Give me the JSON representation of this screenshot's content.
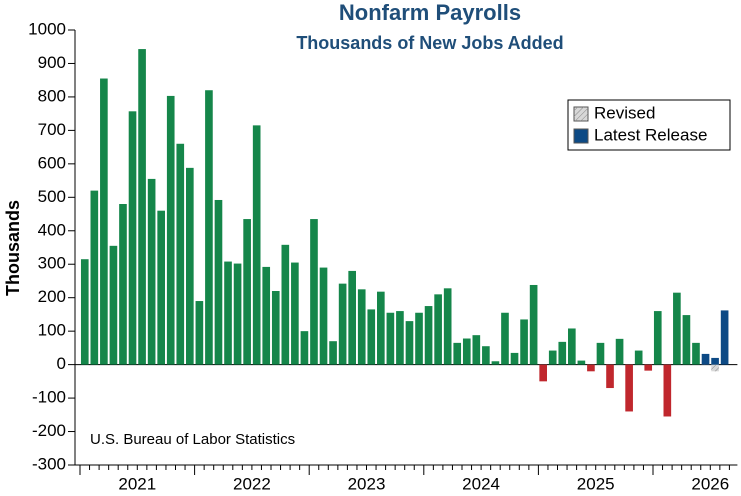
{
  "chart_data": {
    "type": "bar",
    "title": "Nonfarm Payrolls",
    "subtitle": "Thousands of New Jobs Added",
    "y_label": "Thousands",
    "source": "U.S. Bureau of Labor Statistics",
    "categories": [
      null,
      null,
      null,
      null,
      null,
      null,
      null,
      null,
      null,
      null,
      null,
      null,
      null,
      null,
      null,
      null,
      null,
      null,
      null,
      null,
      null,
      null,
      null,
      null,
      null,
      null,
      null,
      null,
      null,
      null,
      null,
      null,
      null,
      null,
      null,
      null,
      null,
      null,
      null,
      null,
      null,
      null,
      null,
      null,
      null,
      null,
      null,
      null,
      null,
      null,
      null,
      null,
      null,
      null,
      null,
      null,
      null,
      null,
      null,
      null,
      null,
      null,
      null,
      null,
      null,
      null,
      null,
      null
    ],
    "year_labels": [
      "2021",
      "2022",
      "2023",
      "2024",
      "2025",
      "2026"
    ],
    "values": [
      315,
      520,
      855,
      355,
      480,
      757,
      943,
      555,
      460,
      803,
      660,
      588,
      190,
      820,
      492,
      308,
      302,
      435,
      715,
      292,
      220,
      358,
      305,
      100,
      435,
      290,
      70,
      242,
      280,
      225,
      165,
      218,
      155,
      160,
      130,
      155,
      175,
      210,
      228,
      65,
      78,
      88,
      55,
      10,
      155,
      35,
      135,
      238,
      -50,
      42,
      68,
      108,
      12,
      -20,
      65,
      -70,
      77,
      -140,
      42,
      -18,
      160,
      -155,
      215,
      148,
      65,
      null,
      null,
      null
    ],
    "positive_color": "#15864a",
    "negative_color": "#c0272d",
    "series": [
      {
        "name": "Revised",
        "color": "#d8d8d8",
        "values": [
          null,
          null,
          null,
          null,
          null,
          null,
          null,
          null,
          null,
          null,
          null,
          null,
          null,
          null,
          null,
          null,
          null,
          null,
          null,
          null,
          null,
          null,
          null,
          null,
          null,
          null,
          null,
          null,
          null,
          null,
          null,
          null,
          null,
          null,
          null,
          null,
          null,
          null,
          null,
          null,
          null,
          null,
          null,
          null,
          null,
          null,
          null,
          null,
          null,
          null,
          null,
          null,
          null,
          null,
          null,
          null,
          null,
          null,
          null,
          null,
          null,
          null,
          null,
          null,
          null,
          15,
          -20,
          null
        ]
      },
      {
        "name": "Latest Release",
        "color": "#0d4a85",
        "values": [
          null,
          null,
          null,
          null,
          null,
          null,
          null,
          null,
          null,
          null,
          null,
          null,
          null,
          null,
          null,
          null,
          null,
          null,
          null,
          null,
          null,
          null,
          null,
          null,
          null,
          null,
          null,
          null,
          null,
          null,
          null,
          null,
          null,
          null,
          null,
          null,
          null,
          null,
          null,
          null,
          null,
          null,
          null,
          null,
          null,
          null,
          null,
          null,
          null,
          null,
          null,
          null,
          null,
          null,
          null,
          null,
          null,
          null,
          null,
          null,
          null,
          null,
          null,
          null,
          null,
          32,
          20,
          162
        ]
      }
    ],
    "ylim": [
      -300,
      1000
    ],
    "yticks": [
      -300,
      -200,
      -100,
      0,
      100,
      200,
      300,
      400,
      500,
      600,
      700,
      800,
      900,
      1000
    ],
    "legend": "upper right"
  }
}
